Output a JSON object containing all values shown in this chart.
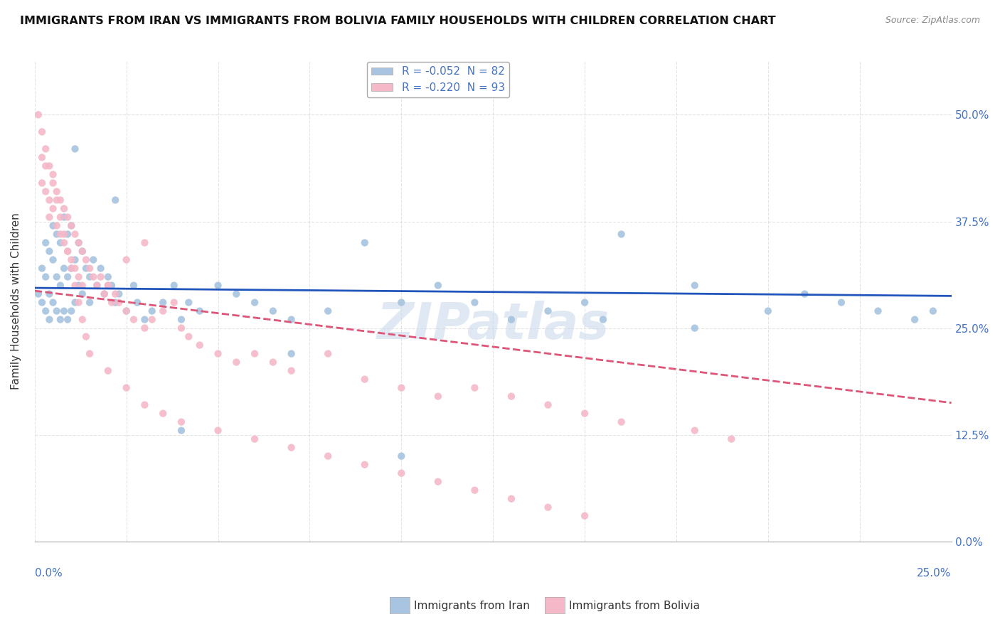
{
  "title": "IMMIGRANTS FROM IRAN VS IMMIGRANTS FROM BOLIVIA FAMILY HOUSEHOLDS WITH CHILDREN CORRELATION CHART",
  "source": "Source: ZipAtlas.com",
  "ylabel_label": "Family Households with Children",
  "legend_iran": "R = -0.052  N = 82",
  "legend_bolivia": "R = -0.220  N = 93",
  "legend_label_iran": "Immigrants from Iran",
  "legend_label_bolivia": "Immigrants from Bolivia",
  "iran_color": "#a8c4e0",
  "bolivia_color": "#f4b8c8",
  "iran_line_color": "#2255bb",
  "bolivia_line_color": "#dd5577",
  "watermark": "ZIPatlas",
  "xmin": 0.0,
  "xmax": 0.25,
  "ymin": 0.0,
  "ymax": 0.5625,
  "iran_R": -0.052,
  "bolivia_R": -0.22,
  "iran_x": [
    0.001,
    0.002,
    0.002,
    0.003,
    0.003,
    0.003,
    0.004,
    0.004,
    0.004,
    0.005,
    0.005,
    0.005,
    0.006,
    0.006,
    0.006,
    0.007,
    0.007,
    0.007,
    0.008,
    0.008,
    0.008,
    0.009,
    0.009,
    0.009,
    0.01,
    0.01,
    0.01,
    0.011,
    0.011,
    0.012,
    0.012,
    0.013,
    0.013,
    0.014,
    0.015,
    0.015,
    0.016,
    0.017,
    0.018,
    0.019,
    0.02,
    0.021,
    0.022,
    0.023,
    0.025,
    0.027,
    0.028,
    0.03,
    0.032,
    0.035,
    0.038,
    0.04,
    0.042,
    0.045,
    0.05,
    0.055,
    0.06,
    0.065,
    0.07,
    0.08,
    0.09,
    0.1,
    0.11,
    0.12,
    0.13,
    0.14,
    0.15,
    0.16,
    0.18,
    0.2,
    0.21,
    0.22,
    0.23,
    0.24,
    0.245,
    0.18,
    0.155,
    0.1,
    0.07,
    0.04,
    0.022,
    0.011
  ],
  "iran_y": [
    0.29,
    0.32,
    0.28,
    0.35,
    0.31,
    0.27,
    0.34,
    0.29,
    0.26,
    0.37,
    0.33,
    0.28,
    0.36,
    0.31,
    0.27,
    0.35,
    0.3,
    0.26,
    0.38,
    0.32,
    0.27,
    0.36,
    0.31,
    0.26,
    0.37,
    0.32,
    0.27,
    0.33,
    0.28,
    0.35,
    0.3,
    0.34,
    0.29,
    0.32,
    0.31,
    0.28,
    0.33,
    0.3,
    0.32,
    0.29,
    0.31,
    0.3,
    0.28,
    0.29,
    0.27,
    0.3,
    0.28,
    0.26,
    0.27,
    0.28,
    0.3,
    0.26,
    0.28,
    0.27,
    0.3,
    0.29,
    0.28,
    0.27,
    0.26,
    0.27,
    0.35,
    0.28,
    0.3,
    0.28,
    0.26,
    0.27,
    0.28,
    0.36,
    0.3,
    0.27,
    0.29,
    0.28,
    0.27,
    0.26,
    0.27,
    0.25,
    0.26,
    0.1,
    0.22,
    0.13,
    0.4,
    0.46
  ],
  "bolivia_x": [
    0.001,
    0.002,
    0.002,
    0.003,
    0.003,
    0.004,
    0.004,
    0.005,
    0.005,
    0.006,
    0.006,
    0.007,
    0.007,
    0.008,
    0.008,
    0.009,
    0.009,
    0.01,
    0.01,
    0.011,
    0.011,
    0.012,
    0.012,
    0.013,
    0.013,
    0.014,
    0.015,
    0.016,
    0.017,
    0.018,
    0.019,
    0.02,
    0.021,
    0.022,
    0.023,
    0.025,
    0.027,
    0.03,
    0.032,
    0.035,
    0.038,
    0.04,
    0.042,
    0.045,
    0.05,
    0.055,
    0.06,
    0.065,
    0.07,
    0.08,
    0.09,
    0.1,
    0.11,
    0.12,
    0.13,
    0.14,
    0.15,
    0.16,
    0.18,
    0.19,
    0.002,
    0.003,
    0.004,
    0.005,
    0.006,
    0.007,
    0.008,
    0.009,
    0.01,
    0.011,
    0.012,
    0.013,
    0.014,
    0.015,
    0.02,
    0.025,
    0.03,
    0.035,
    0.04,
    0.05,
    0.06,
    0.07,
    0.08,
    0.09,
    0.1,
    0.11,
    0.12,
    0.13,
    0.14,
    0.15,
    0.03,
    0.025,
    0.02
  ],
  "bolivia_y": [
    0.5,
    0.45,
    0.42,
    0.44,
    0.41,
    0.4,
    0.38,
    0.43,
    0.39,
    0.41,
    0.37,
    0.4,
    0.36,
    0.39,
    0.35,
    0.38,
    0.34,
    0.37,
    0.33,
    0.36,
    0.32,
    0.35,
    0.31,
    0.34,
    0.3,
    0.33,
    0.32,
    0.31,
    0.3,
    0.31,
    0.29,
    0.3,
    0.28,
    0.29,
    0.28,
    0.27,
    0.26,
    0.25,
    0.26,
    0.27,
    0.28,
    0.25,
    0.24,
    0.23,
    0.22,
    0.21,
    0.22,
    0.21,
    0.2,
    0.22,
    0.19,
    0.18,
    0.17,
    0.18,
    0.17,
    0.16,
    0.15,
    0.14,
    0.13,
    0.12,
    0.48,
    0.46,
    0.44,
    0.42,
    0.4,
    0.38,
    0.36,
    0.34,
    0.32,
    0.3,
    0.28,
    0.26,
    0.24,
    0.22,
    0.2,
    0.18,
    0.16,
    0.15,
    0.14,
    0.13,
    0.12,
    0.11,
    0.1,
    0.09,
    0.08,
    0.07,
    0.06,
    0.05,
    0.04,
    0.03,
    0.35,
    0.33,
    0.3
  ]
}
